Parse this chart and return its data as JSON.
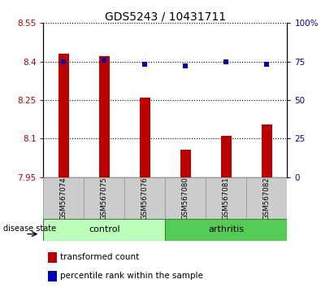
{
  "title": "GDS5243 / 10431711",
  "samples": [
    "GSM567074",
    "GSM567075",
    "GSM567076",
    "GSM567080",
    "GSM567081",
    "GSM567082"
  ],
  "bar_values": [
    8.43,
    8.42,
    8.26,
    8.058,
    8.11,
    8.155
  ],
  "percentile_values": [
    75,
    76,
    73,
    72,
    75,
    73
  ],
  "bar_color": "#bb0000",
  "percentile_color": "#0000bb",
  "y_min": 7.95,
  "y_max": 8.55,
  "y_ticks": [
    7.95,
    8.1,
    8.25,
    8.4,
    8.55
  ],
  "y_right_ticks": [
    0,
    25,
    50,
    75,
    100
  ],
  "control_color": "#bbffbb",
  "arthritis_color": "#55cc55",
  "label_box_color": "#cccccc",
  "legend_bar_label": "transformed count",
  "legend_dot_label": "percentile rank within the sample",
  "disease_state_label": "disease state",
  "control_label": "control",
  "arthritis_label": "arthritis",
  "title_fontsize": 10,
  "tick_fontsize": 7.5,
  "bar_width": 0.25
}
